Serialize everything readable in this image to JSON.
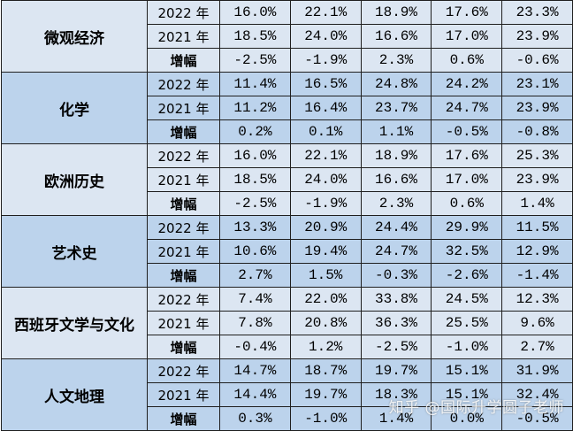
{
  "subjects": [
    {
      "name": "微观经济",
      "rows": [
        {
          "label": "2022 年",
          "values": [
            "16.0%",
            "22.1%",
            "18.9%",
            "17.6%",
            "23.3%"
          ]
        },
        {
          "label": "2021 年",
          "values": [
            "18.5%",
            "24.0%",
            "16.6%",
            "17.0%",
            "23.9%"
          ]
        },
        {
          "label": "增幅",
          "values": [
            "-2.5%",
            "-1.9%",
            "2.3%",
            "0.6%",
            "-0.6%"
          ]
        }
      ]
    },
    {
      "name": "化学",
      "rows": [
        {
          "label": "2022 年",
          "values": [
            "11.4%",
            "16.5%",
            "24.8%",
            "24.2%",
            "23.1%"
          ]
        },
        {
          "label": "2021 年",
          "values": [
            "11.2%",
            "16.4%",
            "23.7%",
            "24.7%",
            "23.9%"
          ]
        },
        {
          "label": "增幅",
          "values": [
            "0.2%",
            "0.1%",
            "1.1%",
            "-0.5%",
            "-0.8%"
          ]
        }
      ]
    },
    {
      "name": "欧洲历史",
      "rows": [
        {
          "label": "2022 年",
          "values": [
            "16.0%",
            "22.1%",
            "18.9%",
            "17.6%",
            "25.3%"
          ]
        },
        {
          "label": "2021 年",
          "values": [
            "18.5%",
            "24.0%",
            "16.6%",
            "17.0%",
            "23.9%"
          ]
        },
        {
          "label": "增幅",
          "values": [
            "-2.5%",
            "-1.9%",
            "2.3%",
            "0.6%",
            "1.4%"
          ]
        }
      ]
    },
    {
      "name": "艺术史",
      "rows": [
        {
          "label": "2022 年",
          "values": [
            "13.3%",
            "20.9%",
            "24.4%",
            "29.9%",
            "11.5%"
          ]
        },
        {
          "label": "2021 年",
          "values": [
            "10.6%",
            "19.4%",
            "24.7%",
            "32.5%",
            "12.9%"
          ]
        },
        {
          "label": "增幅",
          "values": [
            "2.7%",
            "1.5%",
            "-0.3%",
            "-2.6%",
            "-1.4%"
          ]
        }
      ]
    },
    {
      "name": "西班牙文学与文化",
      "rows": [
        {
          "label": "2022 年",
          "values": [
            "7.4%",
            "22.0%",
            "33.8%",
            "24.5%",
            "12.3%"
          ]
        },
        {
          "label": "2021 年",
          "values": [
            "7.8%",
            "20.8%",
            "36.3%",
            "25.5%",
            "9.6%"
          ]
        },
        {
          "label": "增幅",
          "values": [
            "-0.4%",
            "1.2%",
            "-2.5%",
            "-1.0%",
            "2.7%"
          ]
        }
      ]
    },
    {
      "name": "人文地理",
      "rows": [
        {
          "label": "2022 年",
          "values": [
            "14.7%",
            "18.7%",
            "19.7%",
            "15.1%",
            "31.9%"
          ]
        },
        {
          "label": "2021 年",
          "values": [
            "14.4%",
            "19.7%",
            "18.3%",
            "15.1%",
            "32.4%"
          ]
        },
        {
          "label": "增幅",
          "values": [
            "0.3%",
            "-1.0%",
            "1.4%",
            "0.0%",
            "-0.5%"
          ]
        }
      ]
    }
  ],
  "watermark": "知乎 @国际升学圆子老师",
  "colors": {
    "band_light": "#dce6f2",
    "band_dark": "#bcd3ec",
    "border": "#1f1f1f"
  }
}
